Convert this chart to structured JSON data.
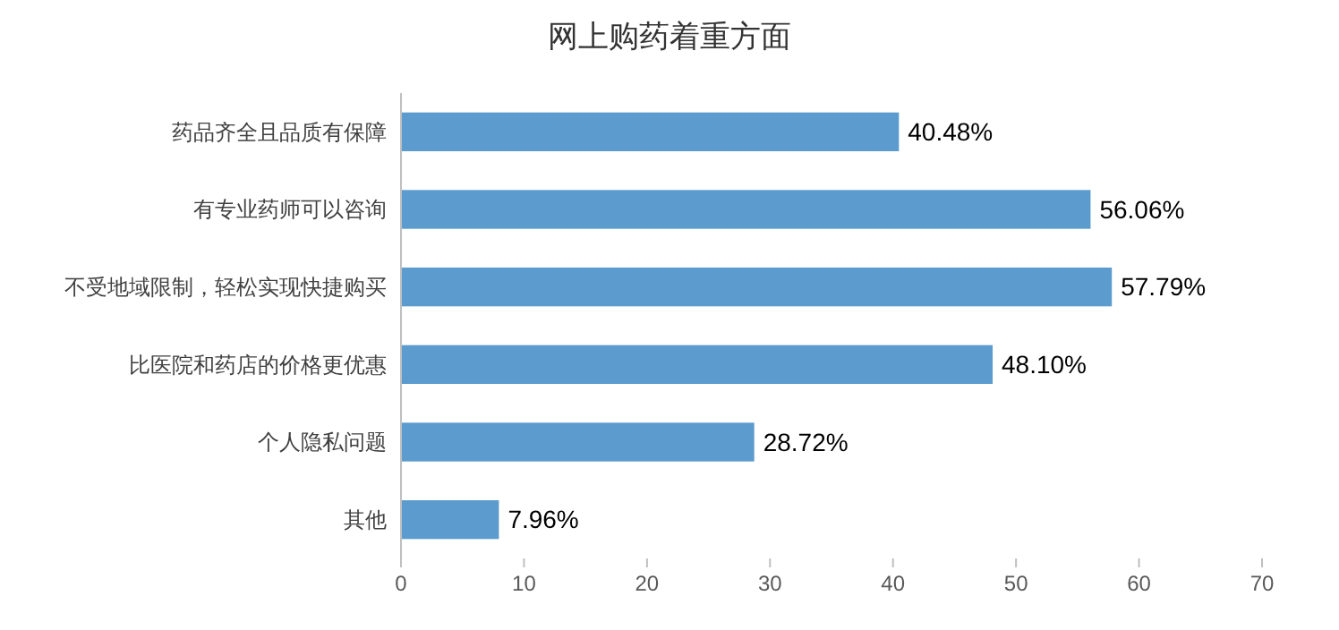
{
  "chart_data": {
    "type": "bar",
    "orientation": "horizontal",
    "title": "网上购药着重方面",
    "categories": [
      "药品齐全且品质有保障",
      "有专业药师可以咨询",
      "不受地域限制，轻松实现快捷购买",
      "比医院和药店的价格更优惠",
      "个人隐私问题",
      "其他"
    ],
    "values": [
      40.48,
      56.06,
      57.79,
      48.1,
      28.72,
      7.96
    ],
    "value_labels": [
      "40.48%",
      "56.06%",
      "57.79%",
      "48.10%",
      "28.72%",
      "7.96%"
    ],
    "color": "#5b9bcd",
    "xlim": [
      0,
      70
    ],
    "xticks": [
      0,
      10,
      20,
      30,
      40,
      50,
      60,
      70
    ],
    "grid": false
  }
}
